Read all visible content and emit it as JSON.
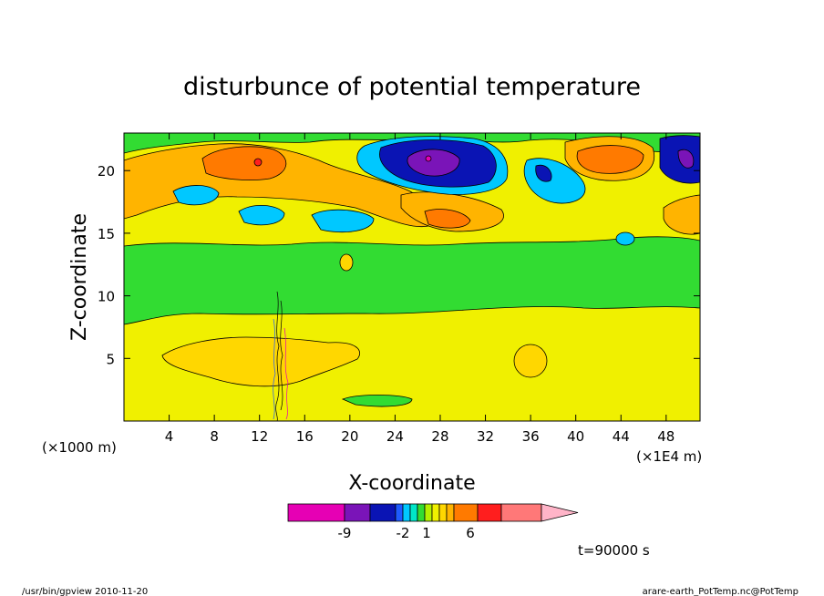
{
  "chart_data": {
    "type": "heatmap",
    "title": "disturbunce of potential temperature",
    "xlabel": "X-coordinate",
    "ylabel": "Z-coordinate",
    "x_unit_left": "(×1000 m)",
    "x_unit_right": "(×1E4 m)",
    "xlim": [
      0,
      51
    ],
    "ylim": [
      0,
      23
    ],
    "xticks": [
      "4",
      "8",
      "12",
      "16",
      "20",
      "24",
      "28",
      "32",
      "36",
      "40",
      "44",
      "48"
    ],
    "yticks": [
      "5",
      "10",
      "15",
      "20"
    ],
    "colorbar": {
      "labels": [
        {
          "text": "-9",
          "value": -9
        },
        {
          "text": "-2",
          "value": -2
        },
        {
          "text": "1",
          "value": 1
        },
        {
          "text": "6",
          "value": 6
        }
      ],
      "colors": [
        "#e600b4",
        "#7a14b8",
        "#0a14b4",
        "#1e5aff",
        "#00c8ff",
        "#00e6c8",
        "#32dc32",
        "#b4f000",
        "#f0f000",
        "#ffd700",
        "#ffb400",
        "#ff7a00",
        "#ff1e1e",
        "#ff7878",
        "#ffb4c8"
      ]
    },
    "time_label": "t=90000 s"
  },
  "footer": {
    "left": "/usr/bin/gpview  2010-11-20",
    "right": "arare-earth_PotTemp.nc@PotTemp"
  }
}
